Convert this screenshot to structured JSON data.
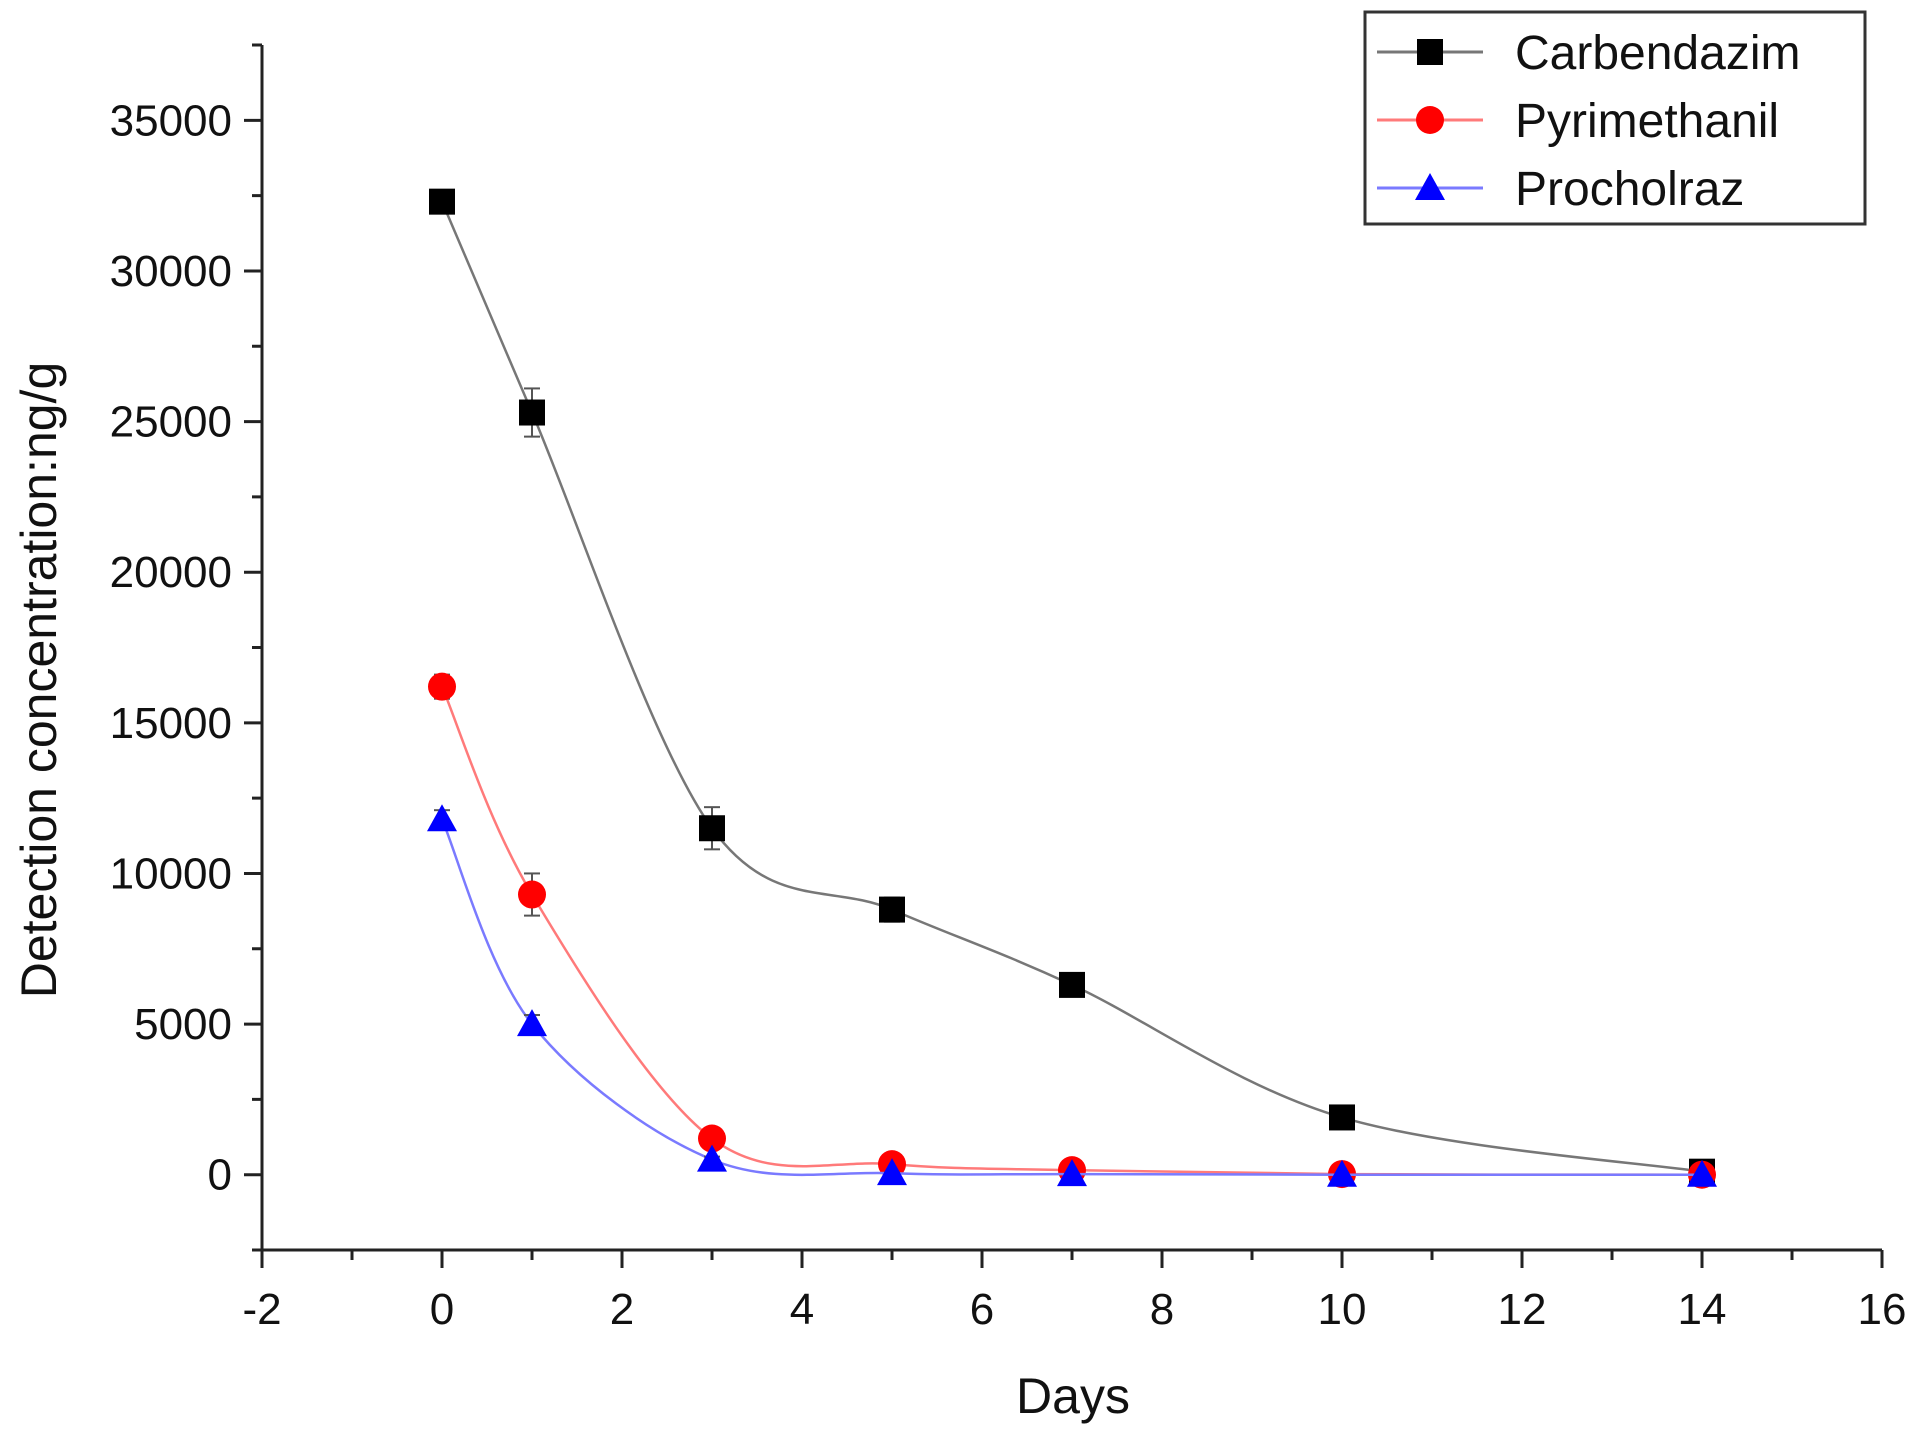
{
  "chart_data": {
    "type": "line",
    "title": "",
    "xlabel": "Days",
    "ylabel": "Detection concentration:ng/g",
    "xlim": [
      -2,
      16
    ],
    "ylim": [
      -2500,
      37500
    ],
    "xticks": [
      -2,
      0,
      2,
      4,
      6,
      8,
      10,
      12,
      14,
      16
    ],
    "xtick_labels": [
      "-2",
      "0",
      "2",
      "4",
      "6",
      "8",
      "10",
      "12",
      "14",
      "16"
    ],
    "yticks": [
      0,
      5000,
      10000,
      15000,
      20000,
      25000,
      30000,
      35000
    ],
    "ytick_labels": [
      "0",
      "5000",
      "10000",
      "15000",
      "20000",
      "25000",
      "30000",
      "35000"
    ],
    "grid": false,
    "legend_position": "top-right",
    "series": [
      {
        "name": "Carbendazim",
        "marker": "square",
        "marker_color": "#000000",
        "line_color": "#777777",
        "x": [
          0,
          1,
          3,
          5,
          7,
          10,
          14
        ],
        "y": [
          32300,
          25300,
          11500,
          8800,
          6300,
          1900,
          100
        ],
        "error": [
          300,
          800,
          700,
          400,
          300,
          200,
          100
        ]
      },
      {
        "name": "Pyrimethanil",
        "marker": "circle",
        "marker_color": "#ff0000",
        "line_color": "#ff7a7a",
        "x": [
          0,
          1,
          3,
          5,
          7,
          10,
          14
        ],
        "y": [
          16200,
          9300,
          1200,
          350,
          150,
          20,
          0
        ],
        "error": [
          400,
          700,
          150,
          80,
          50,
          20,
          0
        ]
      },
      {
        "name": "Procholraz",
        "marker": "triangle",
        "marker_color": "#0000ff",
        "line_color": "#7a7aff",
        "x": [
          0,
          1,
          3,
          5,
          7,
          10,
          14
        ],
        "y": [
          11800,
          5000,
          500,
          50,
          20,
          0,
          0
        ],
        "error": [
          300,
          300,
          100,
          20,
          10,
          0,
          0
        ]
      }
    ]
  }
}
